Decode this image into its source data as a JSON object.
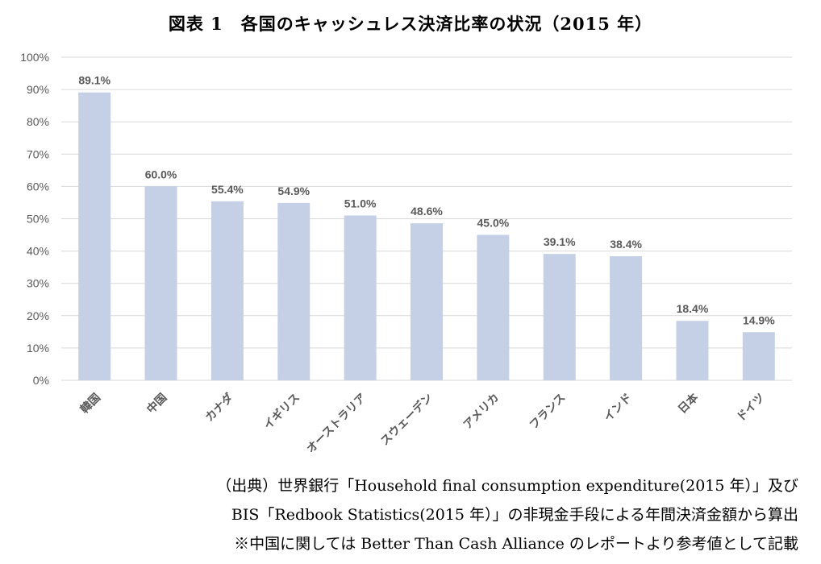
{
  "chart_data": {
    "type": "bar",
    "title": "図表 1　各国のキャッシュレス決済比率の状況（2015 年）",
    "categories": [
      "韓国",
      "中国",
      "カナダ",
      "イギリス",
      "オーストラリア",
      "スウェーデン",
      "アメリカ",
      "フランス",
      "インド",
      "日本",
      "ドイツ"
    ],
    "values": [
      89.1,
      60.0,
      55.4,
      54.9,
      51.0,
      48.6,
      45.0,
      39.1,
      38.4,
      18.4,
      14.9
    ],
    "data_labels": [
      "89.1%",
      "60.0%",
      "55.4%",
      "54.9%",
      "51.0%",
      "48.6%",
      "45.0%",
      "39.1%",
      "38.4%",
      "18.4%",
      "14.9%"
    ],
    "y_ticks": [
      "0%",
      "10%",
      "20%",
      "30%",
      "40%",
      "50%",
      "60%",
      "70%",
      "80%",
      "90%",
      "100%"
    ],
    "ylim": [
      0,
      100
    ],
    "grid": true,
    "legend": "none",
    "bar_color": "#c5d0e7",
    "grid_color": "#d9d9d9",
    "label_color": "#595959"
  },
  "notes": {
    "line1": "（出典）世界銀行「Household final consumption expenditure(2015 年）」及び",
    "line2": "BIS「Redbook Statistics(2015 年）」の非現金手段による年間決済金額から算出",
    "line3": "※中国に関しては Better Than Cash Alliance のレポートより参考値として記載"
  }
}
